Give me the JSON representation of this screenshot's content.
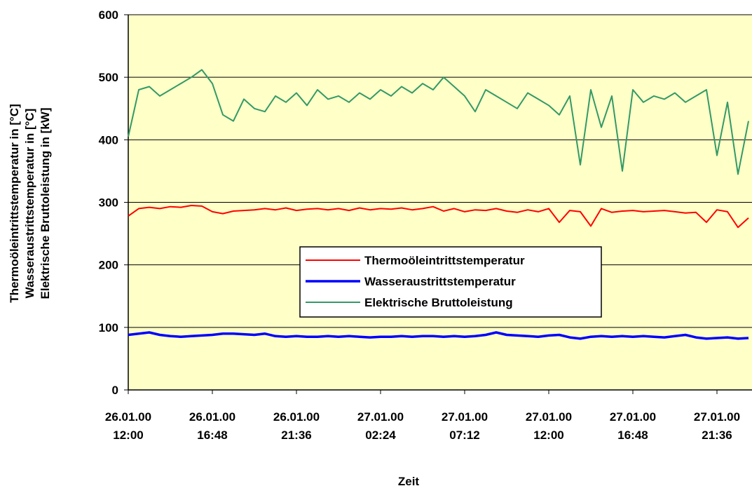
{
  "chart_data": {
    "type": "line",
    "xlabel": "Zeit",
    "ylabel": [
      "Thermoöleintrittstemperatur in [°C]",
      "Wasseraustrittstemperatur in [°C]",
      "Elektrische Bruttoleistung in [kW]"
    ],
    "x": [
      "26.01.00 12:00",
      "26.01.00 12:36",
      "26.01.00 13:12",
      "26.01.00 13:48",
      "26.01.00 14:24",
      "26.01.00 15:00",
      "26.01.00 15:36",
      "26.01.00 16:12",
      "26.01.00 16:48",
      "26.01.00 17:24",
      "26.01.00 18:00",
      "26.01.00 18:36",
      "26.01.00 19:12",
      "26.01.00 19:48",
      "26.01.00 20:24",
      "26.01.00 21:00",
      "26.01.00 21:36",
      "26.01.00 22:12",
      "26.01.00 22:48",
      "26.01.00 23:24",
      "27.01.00 00:00",
      "27.01.00 00:36",
      "27.01.00 01:12",
      "27.01.00 01:48",
      "27.01.00 02:24",
      "27.01.00 03:00",
      "27.01.00 03:36",
      "27.01.00 04:12",
      "27.01.00 04:48",
      "27.01.00 05:24",
      "27.01.00 06:00",
      "27.01.00 06:36",
      "27.01.00 07:12",
      "27.01.00 07:48",
      "27.01.00 08:24",
      "27.01.00 09:00",
      "27.01.00 09:36",
      "27.01.00 10:12",
      "27.01.00 10:48",
      "27.01.00 11:24",
      "27.01.00 12:00",
      "27.01.00 12:36",
      "27.01.00 13:12",
      "27.01.00 13:48",
      "27.01.00 14:24",
      "27.01.00 15:00",
      "27.01.00 15:36",
      "27.01.00 16:12",
      "27.01.00 16:48",
      "27.01.00 17:24",
      "27.01.00 18:00",
      "27.01.00 18:36",
      "27.01.00 19:12",
      "27.01.00 19:48",
      "27.01.00 20:24",
      "27.01.00 21:00",
      "27.01.00 21:36",
      "27.01.00 22:12",
      "27.01.00 22:48",
      "27.01.00 23:24"
    ],
    "series": [
      {
        "name": "Thermoöleintrittstemperatur",
        "color": "#ff0000",
        "width": 2,
        "values": [
          278,
          290,
          292,
          290,
          293,
          292,
          295,
          294,
          285,
          282,
          286,
          287,
          288,
          290,
          288,
          291,
          287,
          289,
          290,
          288,
          290,
          287,
          291,
          288,
          290,
          289,
          291,
          288,
          290,
          293,
          286,
          290,
          285,
          288,
          287,
          290,
          286,
          284,
          288,
          285,
          290,
          268,
          287,
          285,
          262,
          290,
          284,
          286,
          287,
          285,
          286,
          287,
          285,
          283,
          284,
          268,
          288,
          285,
          260,
          275
        ]
      },
      {
        "name": "Wasseraustrittstemperatur",
        "color": "#0000ff",
        "width": 3.5,
        "values": [
          88,
          90,
          92,
          88,
          86,
          85,
          86,
          87,
          88,
          90,
          90,
          89,
          88,
          90,
          86,
          85,
          86,
          85,
          85,
          86,
          85,
          86,
          85,
          84,
          85,
          85,
          86,
          85,
          86,
          86,
          85,
          86,
          85,
          86,
          88,
          92,
          88,
          87,
          86,
          85,
          87,
          88,
          84,
          82,
          85,
          86,
          85,
          86,
          85,
          86,
          85,
          84,
          86,
          88,
          84,
          82,
          83,
          84,
          82,
          83
        ]
      },
      {
        "name": "Elektrische Bruttoleistung",
        "color": "#339966",
        "width": 2,
        "values": [
          405,
          480,
          485,
          470,
          480,
          490,
          500,
          512,
          490,
          440,
          430,
          465,
          450,
          445,
          470,
          460,
          475,
          455,
          480,
          465,
          470,
          460,
          475,
          465,
          480,
          470,
          485,
          475,
          490,
          480,
          500,
          485,
          470,
          445,
          480,
          470,
          460,
          450,
          475,
          465,
          455,
          440,
          470,
          360,
          480,
          420,
          470,
          350,
          480,
          460,
          470,
          465,
          475,
          460,
          470,
          480,
          375,
          460,
          345,
          430
        ]
      }
    ],
    "xlim": [
      "26.01.00 12:00",
      "27.01.00 23:36"
    ],
    "xticks": [
      "26.01.00 12:00",
      "26.01.00 16:48",
      "26.01.00 21:36",
      "27.01.00 02:24",
      "27.01.00 07:12",
      "27.01.00 12:00",
      "27.01.00 16:48",
      "27.01.00 21:36"
    ],
    "ylim": [
      0,
      600
    ],
    "yticks": [
      0,
      100,
      200,
      300,
      400,
      500,
      600
    ],
    "grid": true,
    "background": "#ffffc8"
  }
}
